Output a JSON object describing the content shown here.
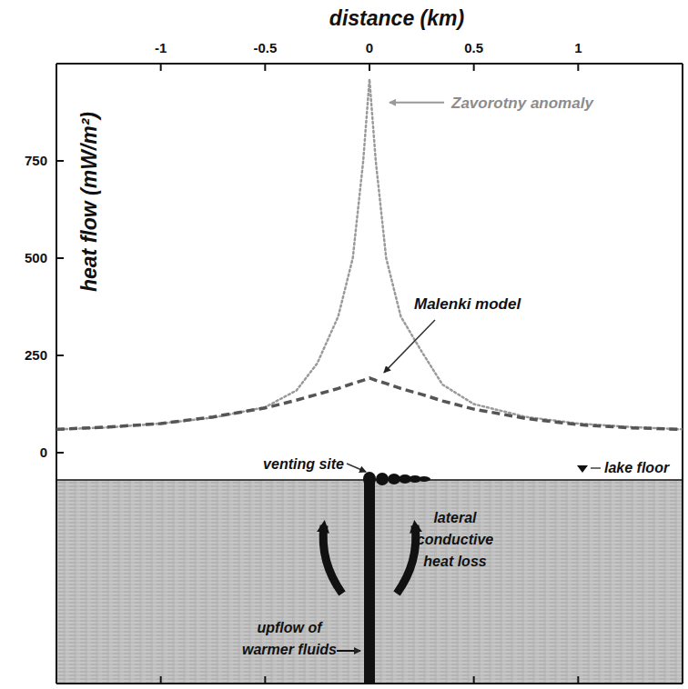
{
  "chart_data": {
    "type": "line",
    "x_label": "distance (km)",
    "y_label": "heat flow (mW/m²)",
    "xlim": [
      -1.5,
      1.5
    ],
    "ylim": [
      -70,
      1000
    ],
    "xticks": [
      -1,
      -0.5,
      0,
      0.5,
      1
    ],
    "yticks": [
      0,
      250,
      500,
      750
    ],
    "grid": false,
    "x": [
      -1.5,
      -1.25,
      -1,
      -0.75,
      -0.5,
      -0.35,
      -0.25,
      -0.15,
      -0.08,
      -0.03,
      0,
      0.03,
      0.08,
      0.15,
      0.25,
      0.35,
      0.5,
      0.75,
      1,
      1.25,
      1.5
    ],
    "series": [
      {
        "name": "Zavorotny anomaly",
        "color": "#9a9a9a",
        "line_style": "dotted",
        "values": [
          60,
          65,
          75,
          90,
          117,
          160,
          230,
          350,
          500,
          750,
          960,
          750,
          500,
          350,
          260,
          175,
          125,
          92,
          75,
          66,
          60
        ]
      },
      {
        "name": "Malenki model",
        "color": "#555555",
        "line_style": "dashed",
        "values": [
          60,
          66,
          75,
          92,
          115,
          135,
          150,
          165,
          178,
          186,
          192,
          186,
          178,
          165,
          150,
          133,
          112,
          88,
          72,
          64,
          60
        ]
      }
    ],
    "annotations": [
      "venting site",
      "lake floor",
      "lateral conductive heat loss",
      "upflow of warmer fluids"
    ]
  }
}
